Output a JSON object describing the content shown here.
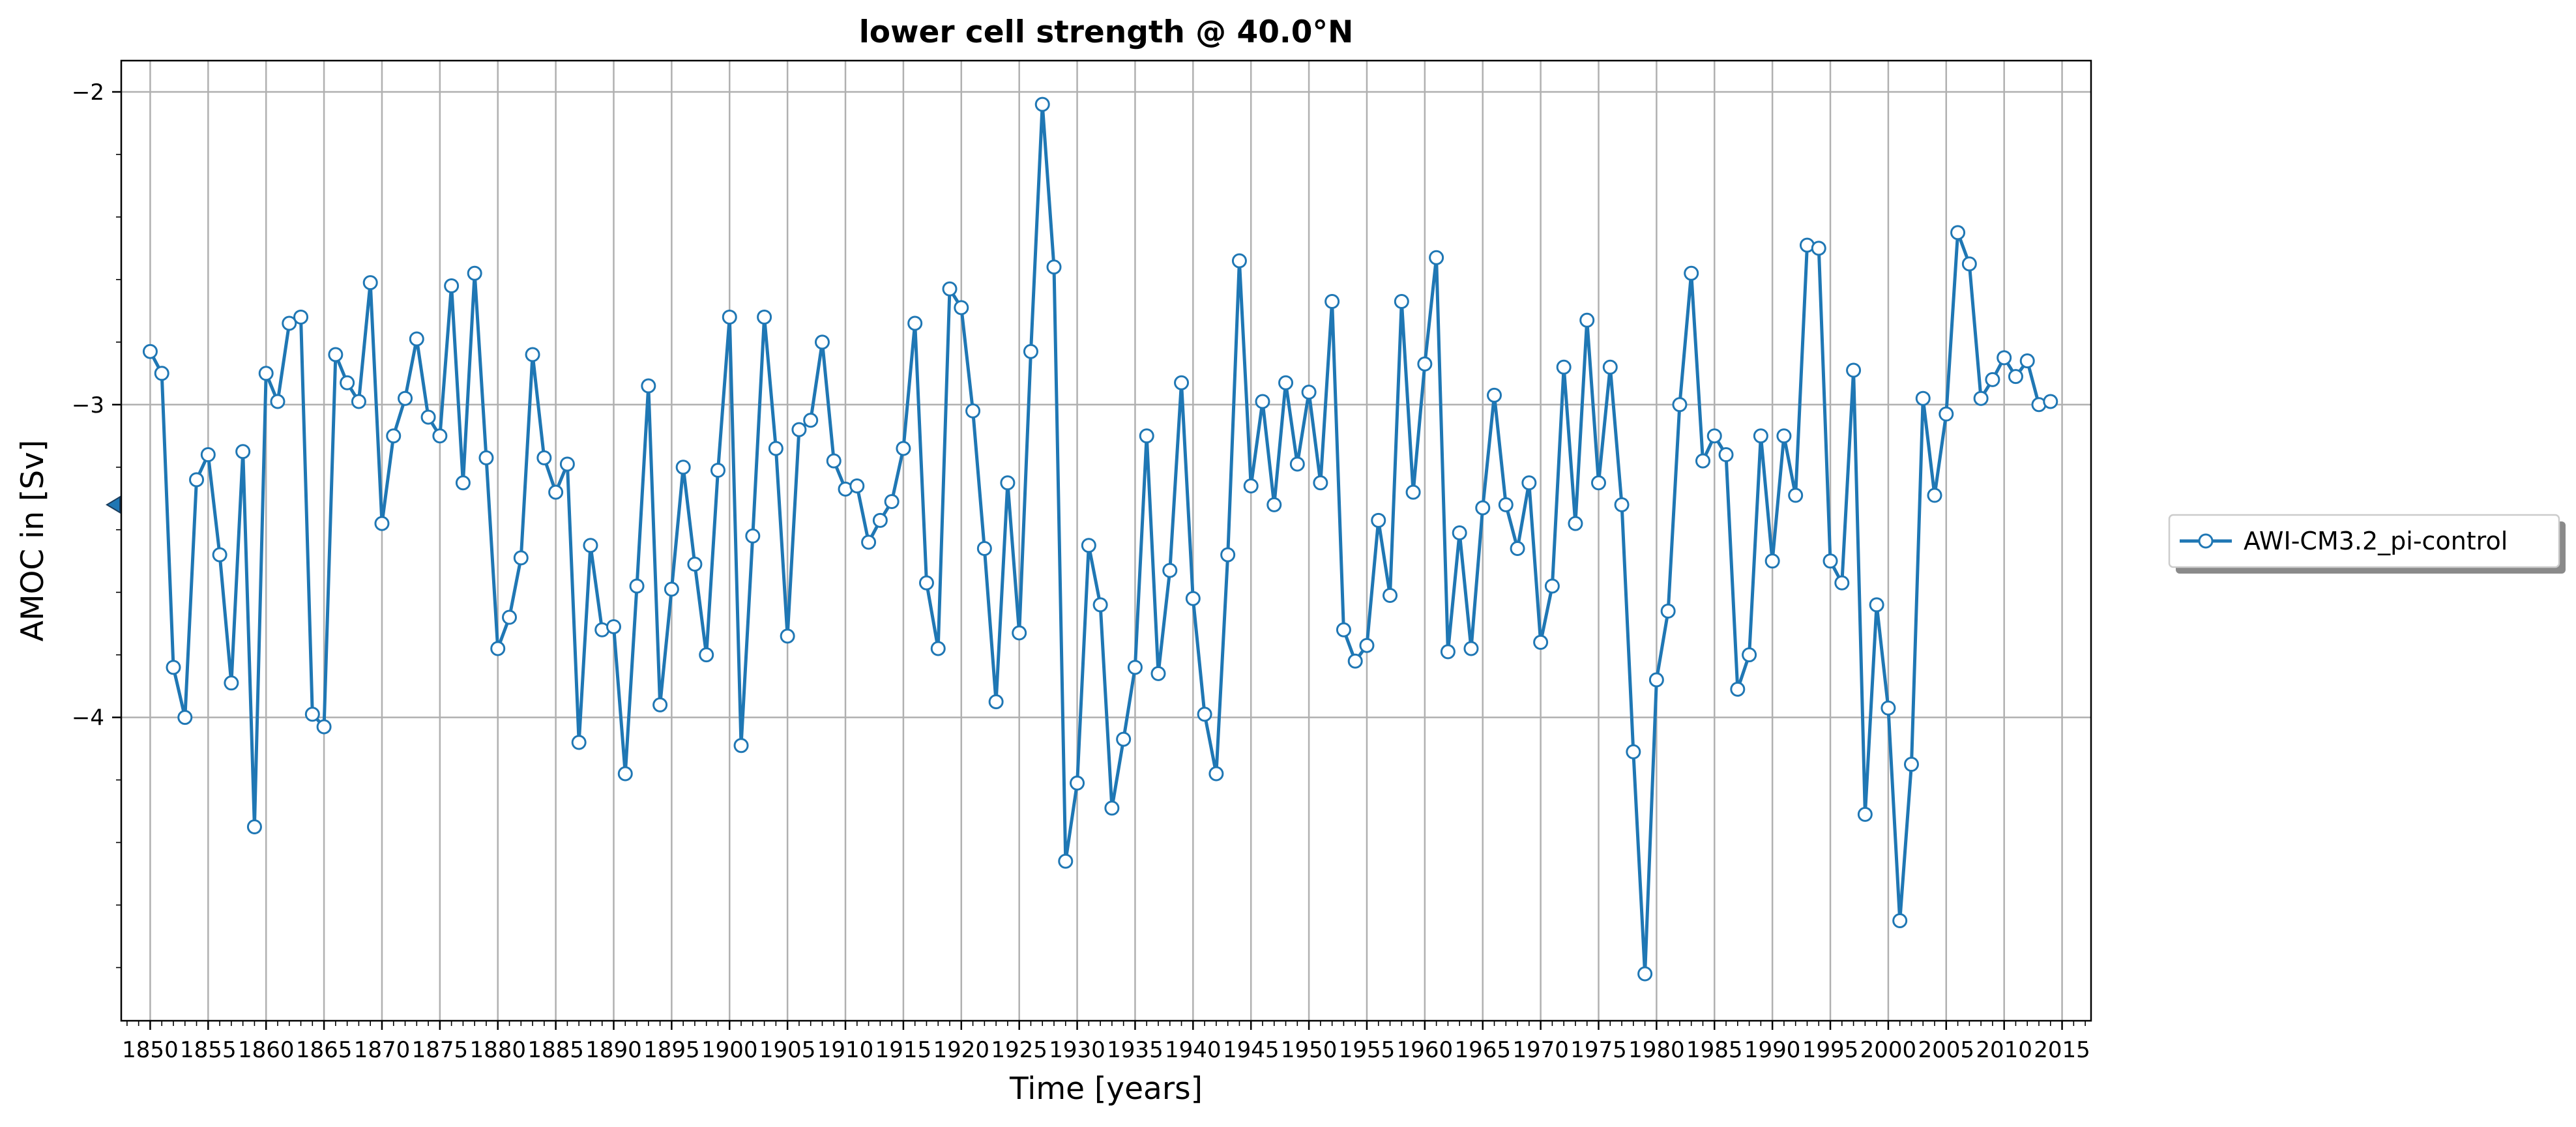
{
  "chart_data": {
    "type": "line",
    "title": "lower cell strength @ 40.0°N",
    "xlabel": "Time [years]",
    "ylabel": "AMOC in [Sv]",
    "xlim": [
      1847.5,
      2017.5
    ],
    "ylim": [
      -4.97,
      -1.9
    ],
    "x_ticks": [
      1850,
      1855,
      1860,
      1865,
      1870,
      1875,
      1880,
      1885,
      1890,
      1895,
      1900,
      1905,
      1910,
      1915,
      1920,
      1925,
      1930,
      1935,
      1940,
      1945,
      1950,
      1955,
      1960,
      1965,
      1970,
      1975,
      1980,
      1985,
      1990,
      1995,
      2000,
      2005,
      2010,
      2015
    ],
    "x_tick_labels": [
      "1850",
      "1855",
      "1860",
      "1865",
      "1870",
      "1875",
      "1880",
      "1885",
      "1890",
      "1895",
      "1900",
      "1905",
      "1910",
      "1915",
      "1920",
      "1925",
      "1930",
      "1935",
      "1940",
      "1945",
      "1950",
      "1955",
      "1960",
      "1965",
      "1970",
      "1975",
      "1980",
      "1985",
      "1990",
      "1995",
      "2000",
      "2005",
      "2010",
      "2015"
    ],
    "y_ticks": [
      -2,
      -3,
      -4
    ],
    "y_tick_labels": [
      "−2",
      "−3",
      "−4"
    ],
    "grid": true,
    "legend_position": "right, outside plot",
    "mean_marker_value": -3.32,
    "colors": {
      "line": "#1f77b4",
      "marker_face": "#ffffff",
      "grid": "#b0b0b0"
    },
    "x": [
      1850,
      1851,
      1852,
      1853,
      1854,
      1855,
      1856,
      1857,
      1858,
      1859,
      1860,
      1861,
      1862,
      1863,
      1864,
      1865,
      1866,
      1867,
      1868,
      1869,
      1870,
      1871,
      1872,
      1873,
      1874,
      1875,
      1876,
      1877,
      1878,
      1879,
      1880,
      1881,
      1882,
      1883,
      1884,
      1885,
      1886,
      1887,
      1888,
      1889,
      1890,
      1891,
      1892,
      1893,
      1894,
      1895,
      1896,
      1897,
      1898,
      1899,
      1900,
      1901,
      1902,
      1903,
      1904,
      1905,
      1906,
      1907,
      1908,
      1909,
      1910,
      1911,
      1912,
      1913,
      1914,
      1915,
      1916,
      1917,
      1918,
      1919,
      1920,
      1921,
      1922,
      1923,
      1924,
      1925,
      1926,
      1927,
      1928,
      1929,
      1930,
      1931,
      1932,
      1933,
      1934,
      1935,
      1936,
      1937,
      1938,
      1939,
      1940,
      1941,
      1942,
      1943,
      1944,
      1945,
      1946,
      1947,
      1948,
      1949,
      1950,
      1951,
      1952,
      1953,
      1954,
      1955,
      1956,
      1957,
      1958,
      1959,
      1960,
      1961,
      1962,
      1963,
      1964,
      1965,
      1966,
      1967,
      1968,
      1969,
      1970,
      1971,
      1972,
      1973,
      1974,
      1975,
      1976,
      1977,
      1978,
      1979,
      1980,
      1981,
      1982,
      1983,
      1984,
      1985,
      1986,
      1987,
      1988,
      1989,
      1990,
      1991,
      1992,
      1993,
      1994,
      1995,
      1996,
      1997,
      1998,
      1999,
      2000,
      2001,
      2002,
      2003,
      2004,
      2005,
      2006,
      2007,
      2008,
      2009,
      2010,
      2011,
      2012,
      2013,
      2014
    ],
    "series": [
      {
        "name": "AWI-CM3.2_pi-control",
        "values": [
          -2.83,
          -2.9,
          -3.84,
          -4.0,
          -3.24,
          -3.16,
          -3.48,
          -3.89,
          -3.15,
          -4.35,
          -2.9,
          -2.99,
          -2.74,
          -2.72,
          -3.99,
          -4.03,
          -2.84,
          -2.93,
          -2.99,
          -2.61,
          -3.38,
          -3.1,
          -2.98,
          -2.79,
          -3.04,
          -3.1,
          -2.62,
          -3.25,
          -2.58,
          -3.17,
          -3.78,
          -3.68,
          -3.49,
          -2.84,
          -3.17,
          -3.28,
          -3.19,
          -4.08,
          -3.45,
          -3.72,
          -3.71,
          -4.18,
          -3.58,
          -2.94,
          -3.96,
          -3.59,
          -3.2,
          -3.51,
          -3.8,
          -3.21,
          -2.72,
          -4.09,
          -3.42,
          -2.72,
          -3.14,
          -3.74,
          -3.08,
          -3.05,
          -2.8,
          -3.18,
          -3.27,
          -3.26,
          -3.44,
          -3.37,
          -3.31,
          -3.14,
          -2.74,
          -3.57,
          -3.78,
          -2.63,
          -2.69,
          -3.02,
          -3.46,
          -3.95,
          -3.25,
          -3.73,
          -2.83,
          -2.04,
          -2.56,
          -4.46,
          -4.21,
          -3.45,
          -3.64,
          -4.29,
          -4.07,
          -3.84,
          -3.1,
          -3.86,
          -3.53,
          -2.93,
          -3.62,
          -3.99,
          -4.18,
          -3.48,
          -2.54,
          -3.26,
          -2.99,
          -3.32,
          -2.93,
          -3.19,
          -2.96,
          -3.25,
          -2.67,
          -3.72,
          -3.82,
          -3.77,
          -3.37,
          -3.61,
          -2.67,
          -3.28,
          -2.87,
          -2.53,
          -3.79,
          -3.41,
          -3.78,
          -3.33,
          -2.97,
          -3.32,
          -3.46,
          -3.25,
          -3.76,
          -3.58,
          -2.88,
          -3.38,
          -2.73,
          -3.25,
          -2.88,
          -3.32,
          -4.11,
          -4.82,
          -3.88,
          -3.66,
          -3.0,
          -2.58,
          -3.18,
          -3.1,
          -3.16,
          -3.91,
          -3.8,
          -3.1,
          -3.5,
          -3.1,
          -3.29,
          -2.49,
          -2.5,
          -3.5,
          -3.57,
          -2.89,
          -4.31,
          -3.64,
          -3.97,
          -4.65,
          -4.15,
          -2.98,
          -3.29,
          -3.03,
          -2.45,
          -2.55,
          -2.98,
          -2.92,
          -2.85,
          -2.91,
          -2.86,
          -3.0,
          -2.99
        ]
      }
    ]
  }
}
